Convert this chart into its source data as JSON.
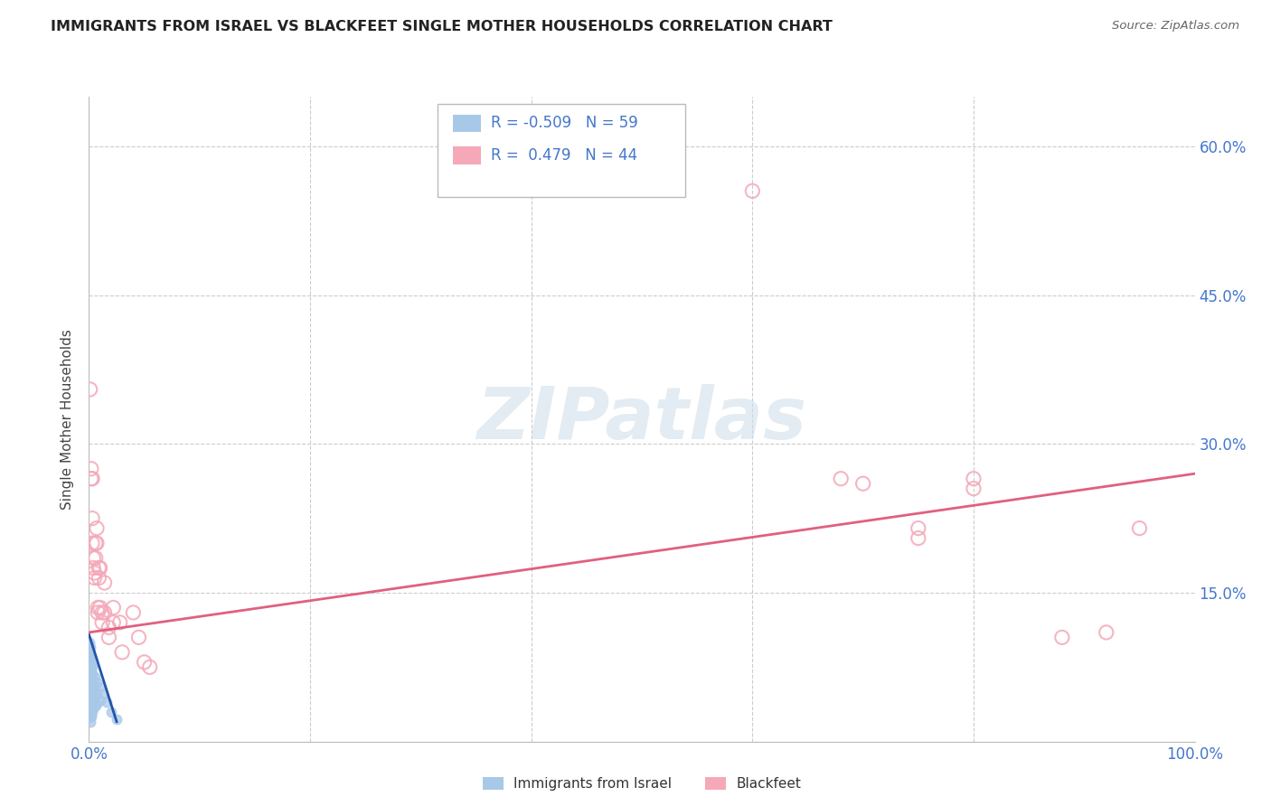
{
  "title": "IMMIGRANTS FROM ISRAEL VS BLACKFEET SINGLE MOTHER HOUSEHOLDS CORRELATION CHART",
  "source": "Source: ZipAtlas.com",
  "ylabel": "Single Mother Households",
  "legend_israel": "Immigrants from Israel",
  "legend_blackfeet": "Blackfeet",
  "israel_R": -0.509,
  "israel_N": 59,
  "blackfeet_R": 0.479,
  "blackfeet_N": 44,
  "xlim": [
    0.0,
    1.0
  ],
  "ylim": [
    0.0,
    0.65
  ],
  "ytick_positions": [
    0.0,
    0.15,
    0.3,
    0.45,
    0.6
  ],
  "ytick_labels": [
    "",
    "15.0%",
    "30.0%",
    "45.0%",
    "60.0%"
  ],
  "background_color": "#ffffff",
  "grid_color": "#cccccc",
  "israel_color": "#a8c8e8",
  "israel_line_color": "#2255aa",
  "blackfeet_color": "#f4a8b8",
  "blackfeet_line_color": "#e06080",
  "israel_points": [
    [
      0.0005,
      0.1
    ],
    [
      0.0005,
      0.09
    ],
    [
      0.0005,
      0.085
    ],
    [
      0.0005,
      0.08
    ],
    [
      0.0005,
      0.075
    ],
    [
      0.0005,
      0.07
    ],
    [
      0.0005,
      0.065
    ],
    [
      0.0005,
      0.06
    ],
    [
      0.0005,
      0.055
    ],
    [
      0.0005,
      0.05
    ],
    [
      0.0005,
      0.045
    ],
    [
      0.0005,
      0.04
    ],
    [
      0.0005,
      0.035
    ],
    [
      0.0005,
      0.03
    ],
    [
      0.0005,
      0.025
    ],
    [
      0.001,
      0.095
    ],
    [
      0.001,
      0.085
    ],
    [
      0.001,
      0.08
    ],
    [
      0.001,
      0.075
    ],
    [
      0.001,
      0.07
    ],
    [
      0.001,
      0.065
    ],
    [
      0.001,
      0.06
    ],
    [
      0.001,
      0.055
    ],
    [
      0.001,
      0.05
    ],
    [
      0.001,
      0.045
    ],
    [
      0.001,
      0.04
    ],
    [
      0.001,
      0.035
    ],
    [
      0.001,
      0.03
    ],
    [
      0.001,
      0.025
    ],
    [
      0.001,
      0.02
    ],
    [
      0.002,
      0.085
    ],
    [
      0.002,
      0.078
    ],
    [
      0.002,
      0.072
    ],
    [
      0.002,
      0.065
    ],
    [
      0.002,
      0.058
    ],
    [
      0.002,
      0.052
    ],
    [
      0.002,
      0.045
    ],
    [
      0.002,
      0.038
    ],
    [
      0.002,
      0.032
    ],
    [
      0.002,
      0.025
    ],
    [
      0.003,
      0.075
    ],
    [
      0.003,
      0.068
    ],
    [
      0.003,
      0.06
    ],
    [
      0.003,
      0.052
    ],
    [
      0.003,
      0.045
    ],
    [
      0.003,
      0.038
    ],
    [
      0.003,
      0.03
    ],
    [
      0.005,
      0.065
    ],
    [
      0.005,
      0.055
    ],
    [
      0.005,
      0.045
    ],
    [
      0.005,
      0.035
    ],
    [
      0.007,
      0.06
    ],
    [
      0.007,
      0.048
    ],
    [
      0.007,
      0.038
    ],
    [
      0.01,
      0.055
    ],
    [
      0.01,
      0.042
    ],
    [
      0.013,
      0.048
    ],
    [
      0.016,
      0.04
    ],
    [
      0.02,
      0.03
    ],
    [
      0.025,
      0.022
    ]
  ],
  "blackfeet_points": [
    [
      0.001,
      0.355
    ],
    [
      0.002,
      0.275
    ],
    [
      0.002,
      0.265
    ],
    [
      0.003,
      0.265
    ],
    [
      0.003,
      0.225
    ],
    [
      0.003,
      0.2
    ],
    [
      0.004,
      0.185
    ],
    [
      0.004,
      0.175
    ],
    [
      0.005,
      0.17
    ],
    [
      0.005,
      0.165
    ],
    [
      0.006,
      0.2
    ],
    [
      0.006,
      0.185
    ],
    [
      0.007,
      0.215
    ],
    [
      0.007,
      0.2
    ],
    [
      0.008,
      0.135
    ],
    [
      0.008,
      0.13
    ],
    [
      0.009,
      0.175
    ],
    [
      0.009,
      0.165
    ],
    [
      0.01,
      0.175
    ],
    [
      0.01,
      0.135
    ],
    [
      0.012,
      0.13
    ],
    [
      0.012,
      0.12
    ],
    [
      0.014,
      0.16
    ],
    [
      0.014,
      0.13
    ],
    [
      0.018,
      0.115
    ],
    [
      0.018,
      0.105
    ],
    [
      0.022,
      0.135
    ],
    [
      0.022,
      0.12
    ],
    [
      0.028,
      0.12
    ],
    [
      0.03,
      0.09
    ],
    [
      0.04,
      0.13
    ],
    [
      0.045,
      0.105
    ],
    [
      0.05,
      0.08
    ],
    [
      0.055,
      0.075
    ],
    [
      0.6,
      0.555
    ],
    [
      0.68,
      0.265
    ],
    [
      0.7,
      0.26
    ],
    [
      0.75,
      0.215
    ],
    [
      0.75,
      0.205
    ],
    [
      0.8,
      0.265
    ],
    [
      0.8,
      0.255
    ],
    [
      0.88,
      0.105
    ],
    [
      0.92,
      0.11
    ],
    [
      0.95,
      0.215
    ]
  ],
  "israel_trendline_x": [
    0.0,
    0.025
  ],
  "israel_trendline_y": [
    0.108,
    0.02
  ],
  "blackfeet_trendline_x": [
    0.0,
    1.0
  ],
  "blackfeet_trendline_y": [
    0.11,
    0.27
  ]
}
